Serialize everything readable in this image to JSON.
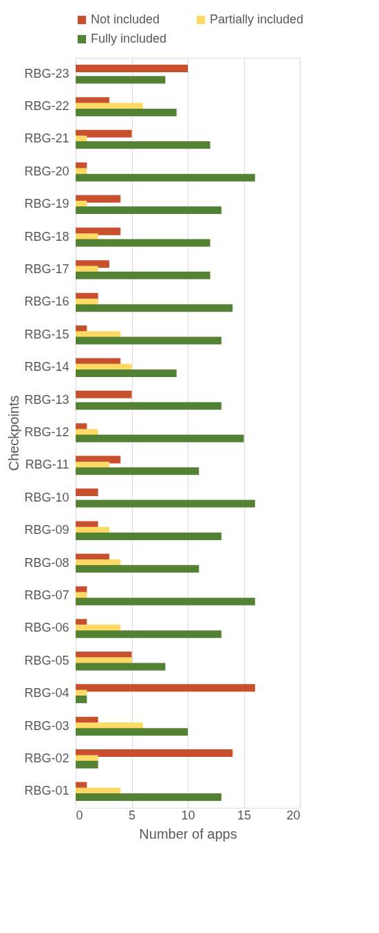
{
  "chart_data": {
    "type": "bar",
    "orientation": "horizontal",
    "xlabel": "Number of apps",
    "ylabel": "Checkpoints",
    "categories": [
      "RBG-23",
      "RBG-22",
      "RBG-21",
      "RBG-20",
      "RBG-19",
      "RBG-18",
      "RBG-17",
      "RBG-16",
      "RBG-15",
      "RBG-14",
      "RBG-13",
      "RBG-12",
      "RBG-11",
      "RBG-10",
      "RBG-09",
      "RBG-08",
      "RBG-07",
      "RBG-06",
      "RBG-05",
      "RBG-04",
      "RBG-03",
      "RBG-02",
      "RBG-01"
    ],
    "series": [
      {
        "name": "Not included",
        "color": "#c9502e",
        "values": [
          10,
          3,
          5,
          1,
          4,
          4,
          3,
          2,
          1,
          4,
          5,
          1,
          4,
          2,
          2,
          3,
          1,
          1,
          5,
          16,
          2,
          14,
          1
        ]
      },
      {
        "name": "Partially included",
        "color": "#ffd966",
        "values": [
          0,
          6,
          1,
          1,
          1,
          2,
          2,
          2,
          4,
          5,
          0,
          2,
          3,
          0,
          3,
          4,
          1,
          4,
          5,
          1,
          6,
          2,
          4
        ]
      },
      {
        "name": "Fully included",
        "color": "#548235",
        "values": [
          8,
          9,
          12,
          16,
          13,
          12,
          12,
          14,
          13,
          9,
          13,
          15,
          11,
          16,
          13,
          11,
          16,
          13,
          8,
          1,
          10,
          2,
          13
        ]
      }
    ],
    "xlim": [
      0,
      20
    ],
    "xticks": [
      0,
      5,
      10,
      15,
      20
    ],
    "grid": "x",
    "legend": "top"
  }
}
